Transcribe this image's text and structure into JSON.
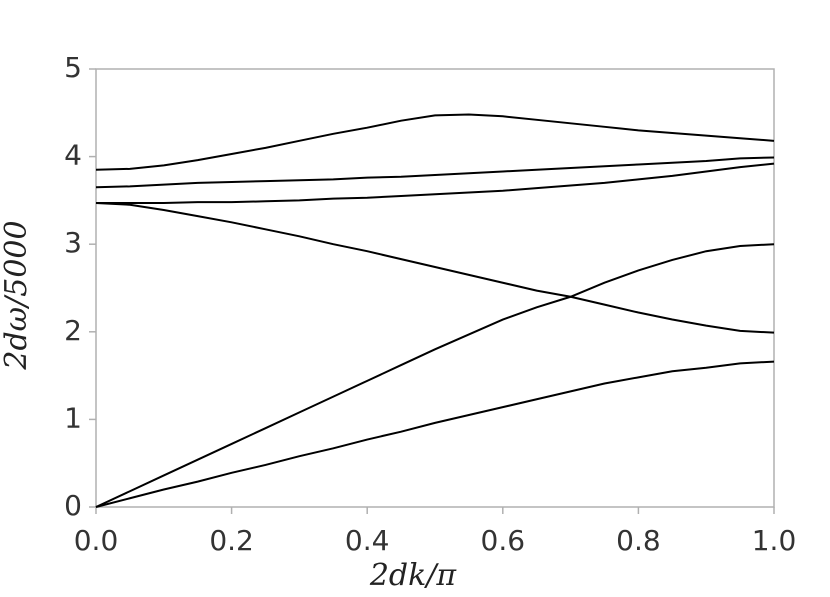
{
  "chart_data": {
    "type": "line",
    "x_label": "2dk/π",
    "y_label": "2dω/5000",
    "x": [
      0,
      0.05,
      0.1,
      0.15,
      0.2,
      0.25,
      0.3,
      0.35,
      0.4,
      0.45,
      0.5,
      0.55,
      0.6,
      0.65,
      0.7,
      0.75,
      0.8,
      0.85,
      0.9,
      0.95,
      1.0
    ],
    "series": [
      {
        "color": "#000000",
        "values": [
          3.85,
          3.86,
          3.9,
          3.96,
          4.03,
          4.1,
          4.18,
          4.26,
          4.33,
          4.41,
          4.47,
          4.48,
          4.46,
          4.42,
          4.38,
          4.34,
          4.3,
          4.27,
          4.24,
          4.21,
          4.18
        ]
      },
      {
        "color": "#000000",
        "values": [
          3.65,
          3.66,
          3.68,
          3.7,
          3.71,
          3.72,
          3.73,
          3.74,
          3.76,
          3.77,
          3.79,
          3.81,
          3.83,
          3.85,
          3.87,
          3.89,
          3.91,
          3.93,
          3.95,
          3.98,
          3.99
        ]
      },
      {
        "color": "#000000",
        "values": [
          3.47,
          3.47,
          3.47,
          3.48,
          3.48,
          3.49,
          3.5,
          3.52,
          3.53,
          3.55,
          3.57,
          3.59,
          3.61,
          3.64,
          3.67,
          3.7,
          3.74,
          3.78,
          3.83,
          3.88,
          3.92
        ]
      },
      {
        "color": "#000000",
        "values": [
          3.47,
          3.45,
          3.39,
          3.32,
          3.25,
          3.17,
          3.09,
          3.0,
          2.92,
          2.83,
          2.74,
          2.65,
          2.56,
          2.47,
          2.4,
          2.31,
          2.22,
          2.14,
          2.07,
          2.01,
          1.99
        ]
      },
      {
        "color": "#000000",
        "values": [
          0,
          0.18,
          0.36,
          0.54,
          0.72,
          0.9,
          1.08,
          1.26,
          1.44,
          1.62,
          1.8,
          1.97,
          2.14,
          2.28,
          2.4,
          2.56,
          2.7,
          2.82,
          2.92,
          2.98,
          3.0
        ]
      },
      {
        "color": "#000000",
        "values": [
          0,
          0.1,
          0.2,
          0.29,
          0.39,
          0.48,
          0.58,
          0.67,
          0.77,
          0.86,
          0.96,
          1.05,
          1.14,
          1.23,
          1.32,
          1.41,
          1.48,
          1.55,
          1.59,
          1.64,
          1.66
        ]
      }
    ],
    "xlim": [
      0,
      1
    ],
    "ylim": [
      0,
      5
    ],
    "xticks": [
      {
        "value": 0,
        "label": "0.0"
      },
      0.2,
      0.4,
      0.6,
      0.8,
      {
        "value": 1,
        "label": "1.0"
      }
    ],
    "yticks": [
      0,
      1,
      2,
      3,
      4,
      5
    ],
    "grid": false
  }
}
